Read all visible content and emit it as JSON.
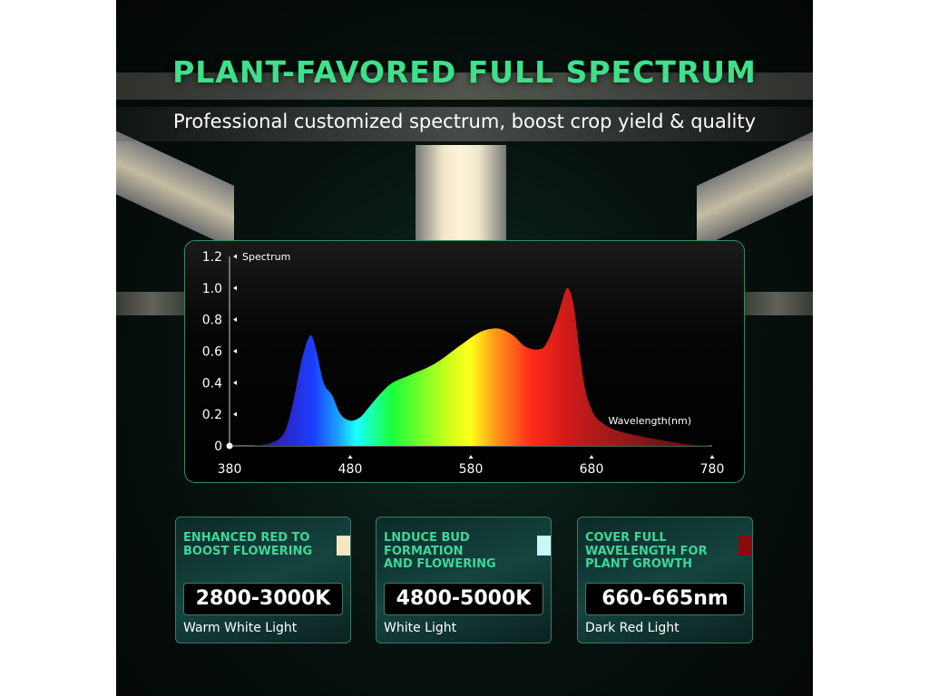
{
  "header": {
    "title": "PLANT-FAVORED FULL SPECTRUM",
    "subtitle": "Professional customized spectrum, boost crop yield & quality"
  },
  "chart_data": {
    "type": "area",
    "ylabel": "Spectrum",
    "xlabel": "Wavelength(nm)",
    "xlim": [
      380,
      780
    ],
    "ylim": [
      0,
      1.2
    ],
    "x_ticks": [
      "380",
      "480",
      "580",
      "680",
      "780"
    ],
    "y_ticks": [
      "0",
      "0.2",
      "0.4",
      "0.6",
      "0.8",
      "1.0",
      "1.2"
    ],
    "grid": false,
    "fill": "wavelength color gradient",
    "x": [
      400,
      415,
      425,
      432,
      440,
      447,
      452,
      458,
      465,
      472,
      480,
      488,
      495,
      505,
      515,
      530,
      550,
      570,
      585,
      595,
      605,
      615,
      625,
      635,
      642,
      650,
      655,
      660,
      665,
      670,
      675,
      682,
      690,
      700,
      715,
      735,
      760,
      780
    ],
    "y": [
      0,
      0.02,
      0.08,
      0.25,
      0.55,
      0.7,
      0.6,
      0.4,
      0.32,
      0.2,
      0.16,
      0.18,
      0.24,
      0.33,
      0.4,
      0.45,
      0.52,
      0.63,
      0.71,
      0.74,
      0.74,
      0.7,
      0.63,
      0.61,
      0.64,
      0.78,
      0.9,
      1.0,
      0.9,
      0.6,
      0.35,
      0.2,
      0.14,
      0.1,
      0.07,
      0.04,
      0.01,
      0
    ]
  },
  "cards": [
    {
      "heading": [
        "ENHANCED RED TO",
        "BOOST FLOWERING"
      ],
      "value": "2800-3000K",
      "label": "Warm White Light",
      "swatch": "#f8e6c2"
    },
    {
      "heading": [
        "LNDUCE BUD",
        "FORMATION",
        "AND FLOWERING"
      ],
      "value": "4800-5000K",
      "label": "White Light",
      "swatch": "#c8f6f8"
    },
    {
      "heading": [
        "COVER FULL",
        "WAVELENGTH FOR",
        "PLANT GROWTH"
      ],
      "value": "660-665nm",
      "label": "Dark Red Light",
      "swatch": "#8a0a10"
    }
  ]
}
